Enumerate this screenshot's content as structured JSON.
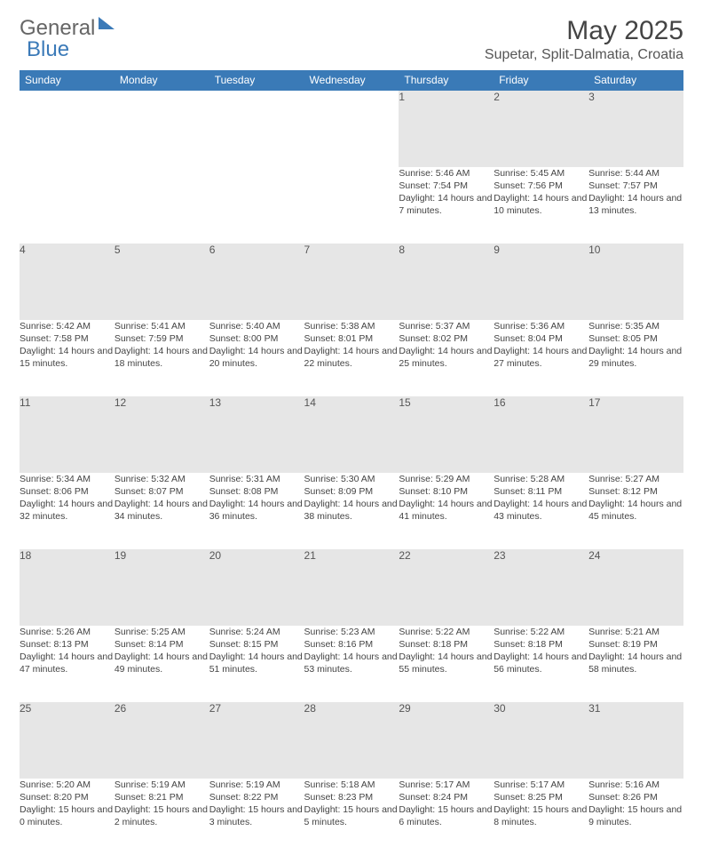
{
  "logo": {
    "part1": "General",
    "part2": "Blue"
  },
  "title": "May 2025",
  "location": "Supetar, Split-Dalmatia, Croatia",
  "colors": {
    "header_bg": "#3a7ab7",
    "header_text": "#ffffff",
    "daynum_bg": "#e6e6e6",
    "border": "#3a7ab7",
    "text": "#444444",
    "page_bg": "#ffffff"
  },
  "typography": {
    "title_fontsize": 30,
    "location_fontsize": 16,
    "header_fontsize": 12,
    "daynum_fontsize": 12,
    "cell_fontsize": 10.5
  },
  "weekdays": [
    "Sunday",
    "Monday",
    "Tuesday",
    "Wednesday",
    "Thursday",
    "Friday",
    "Saturday"
  ],
  "weeks": [
    [
      null,
      null,
      null,
      null,
      {
        "n": "1",
        "sunrise": "Sunrise: 5:46 AM",
        "sunset": "Sunset: 7:54 PM",
        "daylight": "Daylight: 14 hours and 7 minutes."
      },
      {
        "n": "2",
        "sunrise": "Sunrise: 5:45 AM",
        "sunset": "Sunset: 7:56 PM",
        "daylight": "Daylight: 14 hours and 10 minutes."
      },
      {
        "n": "3",
        "sunrise": "Sunrise: 5:44 AM",
        "sunset": "Sunset: 7:57 PM",
        "daylight": "Daylight: 14 hours and 13 minutes."
      }
    ],
    [
      {
        "n": "4",
        "sunrise": "Sunrise: 5:42 AM",
        "sunset": "Sunset: 7:58 PM",
        "daylight": "Daylight: 14 hours and 15 minutes."
      },
      {
        "n": "5",
        "sunrise": "Sunrise: 5:41 AM",
        "sunset": "Sunset: 7:59 PM",
        "daylight": "Daylight: 14 hours and 18 minutes."
      },
      {
        "n": "6",
        "sunrise": "Sunrise: 5:40 AM",
        "sunset": "Sunset: 8:00 PM",
        "daylight": "Daylight: 14 hours and 20 minutes."
      },
      {
        "n": "7",
        "sunrise": "Sunrise: 5:38 AM",
        "sunset": "Sunset: 8:01 PM",
        "daylight": "Daylight: 14 hours and 22 minutes."
      },
      {
        "n": "8",
        "sunrise": "Sunrise: 5:37 AM",
        "sunset": "Sunset: 8:02 PM",
        "daylight": "Daylight: 14 hours and 25 minutes."
      },
      {
        "n": "9",
        "sunrise": "Sunrise: 5:36 AM",
        "sunset": "Sunset: 8:04 PM",
        "daylight": "Daylight: 14 hours and 27 minutes."
      },
      {
        "n": "10",
        "sunrise": "Sunrise: 5:35 AM",
        "sunset": "Sunset: 8:05 PM",
        "daylight": "Daylight: 14 hours and 29 minutes."
      }
    ],
    [
      {
        "n": "11",
        "sunrise": "Sunrise: 5:34 AM",
        "sunset": "Sunset: 8:06 PM",
        "daylight": "Daylight: 14 hours and 32 minutes."
      },
      {
        "n": "12",
        "sunrise": "Sunrise: 5:32 AM",
        "sunset": "Sunset: 8:07 PM",
        "daylight": "Daylight: 14 hours and 34 minutes."
      },
      {
        "n": "13",
        "sunrise": "Sunrise: 5:31 AM",
        "sunset": "Sunset: 8:08 PM",
        "daylight": "Daylight: 14 hours and 36 minutes."
      },
      {
        "n": "14",
        "sunrise": "Sunrise: 5:30 AM",
        "sunset": "Sunset: 8:09 PM",
        "daylight": "Daylight: 14 hours and 38 minutes."
      },
      {
        "n": "15",
        "sunrise": "Sunrise: 5:29 AM",
        "sunset": "Sunset: 8:10 PM",
        "daylight": "Daylight: 14 hours and 41 minutes."
      },
      {
        "n": "16",
        "sunrise": "Sunrise: 5:28 AM",
        "sunset": "Sunset: 8:11 PM",
        "daylight": "Daylight: 14 hours and 43 minutes."
      },
      {
        "n": "17",
        "sunrise": "Sunrise: 5:27 AM",
        "sunset": "Sunset: 8:12 PM",
        "daylight": "Daylight: 14 hours and 45 minutes."
      }
    ],
    [
      {
        "n": "18",
        "sunrise": "Sunrise: 5:26 AM",
        "sunset": "Sunset: 8:13 PM",
        "daylight": "Daylight: 14 hours and 47 minutes."
      },
      {
        "n": "19",
        "sunrise": "Sunrise: 5:25 AM",
        "sunset": "Sunset: 8:14 PM",
        "daylight": "Daylight: 14 hours and 49 minutes."
      },
      {
        "n": "20",
        "sunrise": "Sunrise: 5:24 AM",
        "sunset": "Sunset: 8:15 PM",
        "daylight": "Daylight: 14 hours and 51 minutes."
      },
      {
        "n": "21",
        "sunrise": "Sunrise: 5:23 AM",
        "sunset": "Sunset: 8:16 PM",
        "daylight": "Daylight: 14 hours and 53 minutes."
      },
      {
        "n": "22",
        "sunrise": "Sunrise: 5:22 AM",
        "sunset": "Sunset: 8:18 PM",
        "daylight": "Daylight: 14 hours and 55 minutes."
      },
      {
        "n": "23",
        "sunrise": "Sunrise: 5:22 AM",
        "sunset": "Sunset: 8:18 PM",
        "daylight": "Daylight: 14 hours and 56 minutes."
      },
      {
        "n": "24",
        "sunrise": "Sunrise: 5:21 AM",
        "sunset": "Sunset: 8:19 PM",
        "daylight": "Daylight: 14 hours and 58 minutes."
      }
    ],
    [
      {
        "n": "25",
        "sunrise": "Sunrise: 5:20 AM",
        "sunset": "Sunset: 8:20 PM",
        "daylight": "Daylight: 15 hours and 0 minutes."
      },
      {
        "n": "26",
        "sunrise": "Sunrise: 5:19 AM",
        "sunset": "Sunset: 8:21 PM",
        "daylight": "Daylight: 15 hours and 2 minutes."
      },
      {
        "n": "27",
        "sunrise": "Sunrise: 5:19 AM",
        "sunset": "Sunset: 8:22 PM",
        "daylight": "Daylight: 15 hours and 3 minutes."
      },
      {
        "n": "28",
        "sunrise": "Sunrise: 5:18 AM",
        "sunset": "Sunset: 8:23 PM",
        "daylight": "Daylight: 15 hours and 5 minutes."
      },
      {
        "n": "29",
        "sunrise": "Sunrise: 5:17 AM",
        "sunset": "Sunset: 8:24 PM",
        "daylight": "Daylight: 15 hours and 6 minutes."
      },
      {
        "n": "30",
        "sunrise": "Sunrise: 5:17 AM",
        "sunset": "Sunset: 8:25 PM",
        "daylight": "Daylight: 15 hours and 8 minutes."
      },
      {
        "n": "31",
        "sunrise": "Sunrise: 5:16 AM",
        "sunset": "Sunset: 8:26 PM",
        "daylight": "Daylight: 15 hours and 9 minutes."
      }
    ]
  ]
}
